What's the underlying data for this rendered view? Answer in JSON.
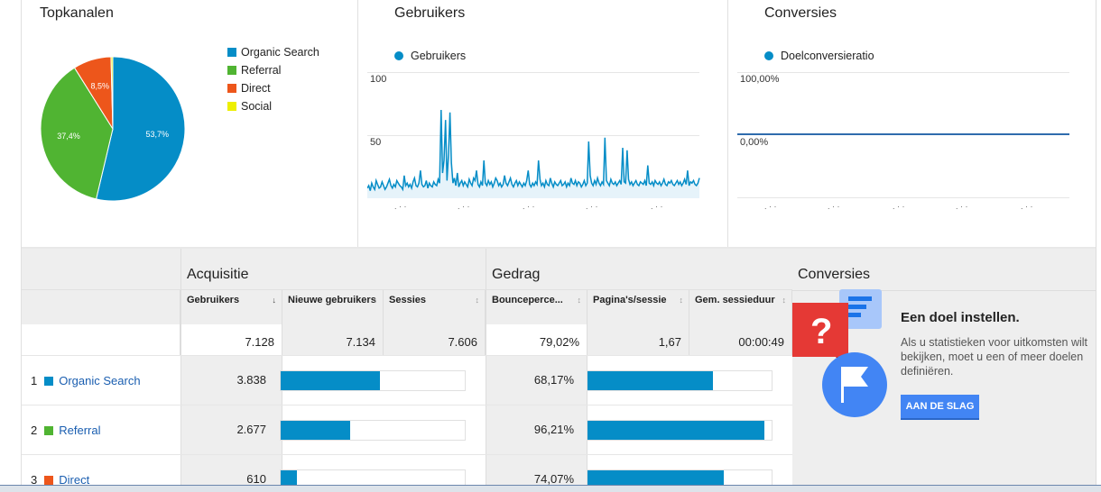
{
  "panels": {
    "topkanalen": {
      "title": "Topkanalen",
      "legend": [
        {
          "label": "Organic Search",
          "color": "#058dc7"
        },
        {
          "label": "Referral",
          "color": "#50b432"
        },
        {
          "label": "Direct",
          "color": "#ed561b"
        },
        {
          "label": "Social",
          "color": "#edef00"
        }
      ],
      "slice_labels": [
        "53,7%",
        "37,4%",
        "8,5%"
      ]
    },
    "gebruikers": {
      "title": "Gebruikers",
      "legend_label": "Gebruikers",
      "y_labels": [
        "100",
        "50"
      ]
    },
    "conversies": {
      "title": "Conversies",
      "legend_label": "Doelconversieratio",
      "y_labels": [
        "100,00%",
        "0,00%"
      ]
    }
  },
  "chart_data": [
    {
      "type": "pie",
      "categories": [
        "Organic Search",
        "Referral",
        "Direct",
        "Social"
      ],
      "values": [
        53.7,
        37.4,
        8.5,
        0.4
      ],
      "title": "Topkanalen"
    },
    {
      "type": "line",
      "series": [
        {
          "name": "Gebruikers",
          "values": [
            8,
            10,
            6,
            12,
            9,
            7,
            14,
            11,
            8,
            9,
            13,
            10,
            7,
            9,
            12,
            15,
            10,
            8,
            11,
            9,
            14,
            12,
            10,
            9,
            7,
            18,
            10,
            12,
            9,
            11,
            8,
            13,
            16,
            10,
            9,
            12,
            22,
            11,
            9,
            10,
            14,
            8,
            12,
            10,
            9,
            13,
            11,
            10,
            15,
            12,
            70,
            20,
            30,
            62,
            14,
            35,
            68,
            28,
            12,
            16,
            10,
            20,
            9,
            12,
            14,
            10,
            13,
            11,
            9,
            15,
            12,
            10,
            16,
            14,
            22,
            11,
            9,
            13,
            10,
            30,
            12,
            10,
            14,
            11,
            13,
            9,
            12,
            16,
            14,
            10,
            12,
            9,
            11,
            18,
            12,
            10,
            13,
            16,
            11,
            9,
            12,
            14,
            10,
            13,
            11,
            9,
            12,
            10,
            14,
            22,
            11,
            9,
            12,
            10,
            13,
            11,
            30,
            15,
            10,
            12,
            9,
            14,
            11,
            10,
            16,
            12,
            9,
            13,
            11,
            10,
            12,
            14,
            10,
            11,
            13,
            9,
            12,
            10,
            16,
            12,
            11,
            14,
            10,
            13,
            12,
            9,
            11,
            14,
            10,
            12,
            45,
            18,
            12,
            10,
            14,
            11,
            16,
            12,
            10,
            13,
            11,
            48,
            14,
            12,
            10,
            15,
            12,
            11,
            13,
            10,
            12,
            14,
            11,
            40,
            13,
            12,
            38,
            15,
            11,
            13,
            10,
            12,
            14,
            11,
            10,
            13,
            12,
            11,
            14,
            10,
            26,
            12,
            11,
            13,
            10,
            14,
            12,
            11,
            13,
            10,
            12,
            15,
            11,
            10,
            13,
            12,
            14,
            11,
            10,
            12,
            14,
            11,
            13,
            10,
            12,
            15,
            11,
            22,
            10,
            13,
            12,
            14,
            11,
            10,
            12,
            16
          ]
        }
      ],
      "ylim": [
        0,
        100
      ]
    },
    {
      "type": "line",
      "series": [
        {
          "name": "Doelconversieratio",
          "values": [
            0,
            0,
            0,
            0,
            0,
            0,
            0,
            0,
            0,
            0
          ]
        }
      ],
      "ylim": [
        0,
        100
      ]
    }
  ],
  "table": {
    "groups": {
      "acquisitie": "Acquisitie",
      "gedrag": "Gedrag",
      "conversies": "Conversies"
    },
    "columns": [
      {
        "label": "Gebruikers",
        "sort": "↓"
      },
      {
        "label": "Nieuwe gebruikers",
        "sort": "↕"
      },
      {
        "label": "Sessies",
        "sort": "↕"
      },
      {
        "label": "Bounceperce...",
        "sort": "↕"
      },
      {
        "label": "Pagina's/sessie",
        "sort": "↕"
      },
      {
        "label": "Gem. sessieduur",
        "sort": "↕"
      }
    ],
    "totals": [
      "7.128",
      "7.134",
      "7.606",
      "79,02%",
      "1,67",
      "00:00:49"
    ],
    "rows": [
      {
        "index": "1",
        "label": "Organic Search",
        "color": "#058dc7",
        "users": "3.838",
        "new_users_pct": 53.8,
        "bounce": "68,17%",
        "bounce_frac": 0.6817
      },
      {
        "index": "2",
        "label": "Referral",
        "color": "#50b432",
        "users": "2.677",
        "new_users_pct": 37.5,
        "bounce": "96,21%",
        "bounce_frac": 0.9621
      },
      {
        "index": "3",
        "label": "Direct",
        "color": "#ed561b",
        "users": "610",
        "new_users_pct": 8.6,
        "bounce": "74,07%",
        "bounce_frac": 0.7407
      }
    ]
  },
  "conversion_promo": {
    "heading": "Een doel instellen.",
    "body": "Als u statistieken voor uitkomsten wilt bekijken, moet u een of meer doelen definiëren.",
    "button": "AAN DE SLAG"
  }
}
